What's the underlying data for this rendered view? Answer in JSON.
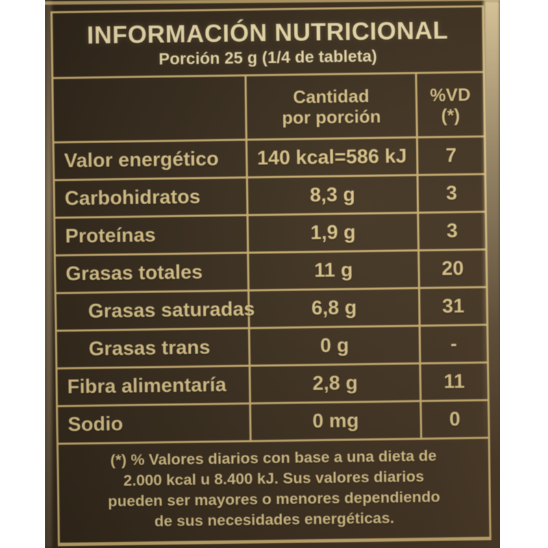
{
  "colors": {
    "gold": "#c8ad70",
    "gold-bright": "#e4cf99",
    "cream": "#eedfae",
    "text": "#d9c38a",
    "canvas": "#ffffff",
    "label_bg": "#382c1e"
  },
  "header": {
    "title": "INFORMACIÓN NUTRICIONAL",
    "serving": "Porción 25 g (1/4 de tableta)"
  },
  "table": {
    "amount_header_line1": "Cantidad",
    "amount_header_line2": "por porción",
    "dv_header_line1": "%VD",
    "dv_header_line2": "(*)",
    "rows": [
      {
        "label": "Valor energético",
        "amount": "140 kcal=586 kJ",
        "dv": "7",
        "indent": false
      },
      {
        "label": "Carbohidratos",
        "amount": "8,3 g",
        "dv": "3",
        "indent": false
      },
      {
        "label": "Proteínas",
        "amount": "1,9 g",
        "dv": "3",
        "indent": false
      },
      {
        "label": "Grasas totales",
        "amount": "11 g",
        "dv": "20",
        "indent": false
      },
      {
        "label": "Grasas saturadas",
        "amount": "6,8 g",
        "dv": "31",
        "indent": true
      },
      {
        "label": "Grasas trans",
        "amount": "0 g",
        "dv": "-",
        "indent": true
      },
      {
        "label": "Fibra alimentaría",
        "amount": "2,8 g",
        "dv": "11",
        "indent": false
      },
      {
        "label": "Sodio",
        "amount": "0 mg",
        "dv": "0",
        "indent": false
      }
    ]
  },
  "footnote": {
    "lines": [
      "(*) % Valores diarios con base a una dieta de",
      "2.000 kcal u 8.400 kJ. Sus valores diarios",
      "pueden ser mayores o menores dependiendo",
      "de sus necesidades energéticas."
    ]
  }
}
